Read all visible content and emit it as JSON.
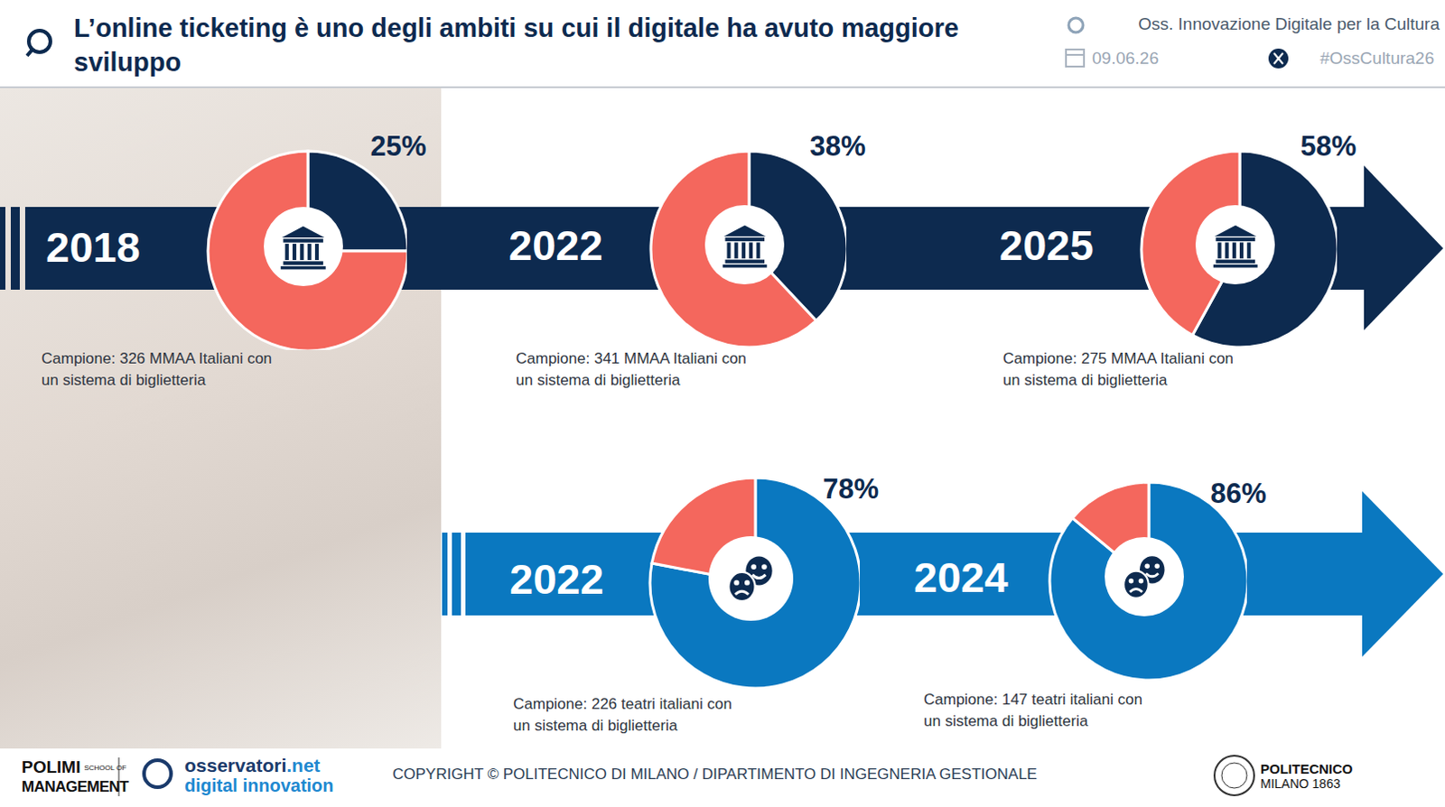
{
  "header": {
    "title": "L’online ticketing è uno degli ambiti su cui il digitale ha avuto maggiore sviluppo",
    "source": "Oss. Innovazione Digitale per la Cultura",
    "date": "09.06.26",
    "hashtag": "#OssCultura26"
  },
  "chart_data": [
    {
      "type": "pie",
      "title": "2018",
      "values": [
        25,
        75
      ],
      "value_labels": [
        "25%",
        null
      ],
      "colors": [
        "#0d2a4f",
        "#f4675d"
      ],
      "subtitle": "Campione: 326 MMAA Italiani con un sistema di biglietteria"
    },
    {
      "type": "pie",
      "title": "2022",
      "values": [
        38,
        62
      ],
      "value_labels": [
        "38%",
        null
      ],
      "colors": [
        "#0d2a4f",
        "#f4675d"
      ],
      "subtitle": "Campione: 341 MMAA Italiani con un sistema di biglietteria"
    },
    {
      "type": "pie",
      "title": "2025",
      "values": [
        58,
        42
      ],
      "value_labels": [
        "58%",
        null
      ],
      "colors": [
        "#0d2a4f",
        "#f4675d"
      ],
      "subtitle": "Campione: 275 MMAA Italiani con un sistema di biglietteria"
    },
    {
      "type": "pie",
      "title": "2022",
      "values": [
        78,
        22
      ],
      "value_labels": [
        "78%",
        null
      ],
      "colors": [
        "#0a78c0",
        "#f4675d"
      ],
      "subtitle": "Campione: 226 teatri italiani con un sistema di biglietteria"
    },
    {
      "type": "pie",
      "title": "2024",
      "values": [
        86,
        14
      ],
      "value_labels": [
        "86%",
        null
      ],
      "colors": [
        "#0a78c0",
        "#f4675d"
      ],
      "subtitle": "Campione: 147 teatri italiani con un sistema di biglietteria"
    }
  ],
  "footer": {
    "logo_left": [
      "POLIMI",
      "SCHOOL OF",
      "MANAGEMENT"
    ],
    "logo_mid": [
      "osservatori.net",
      "digital innovation"
    ],
    "copyright": "COPYRIGHT © POLITECNICO DI MILANO / DIPARTIMENTO DI INGEGNERIA GESTIONALE",
    "logo_right": [
      "POLITECNICO",
      "MILANO 1863"
    ]
  }
}
